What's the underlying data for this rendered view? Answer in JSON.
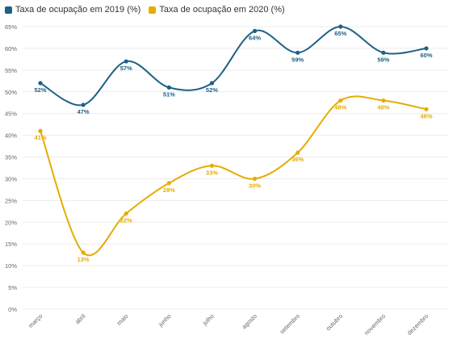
{
  "chart_data": {
    "type": "line",
    "categories": [
      "março",
      "abril",
      "maio",
      "junho",
      "julho",
      "agosto",
      "setembro",
      "outubro",
      "novembro",
      "dezembro"
    ],
    "series": [
      {
        "name": "Taxa de ocupação em 2019 (%)",
        "color": "#1d6185",
        "values": [
          52,
          47,
          57,
          51,
          52,
          64,
          59,
          65,
          59,
          60
        ],
        "labels": [
          "52%",
          "47%",
          "57%",
          "51%",
          "52%",
          "64%",
          "59%",
          "65%",
          "59%",
          "60%"
        ]
      },
      {
        "name": "Taxa de ocupação em 2020 (%)",
        "color": "#e6ac00",
        "values": [
          41,
          13,
          22,
          29,
          33,
          30,
          36,
          48,
          48,
          46
        ],
        "labels": [
          "41%",
          "13%",
          "22%",
          "29%",
          "33%",
          "30%",
          "36%",
          "48%",
          "48%",
          "46%"
        ]
      }
    ],
    "ylim": [
      0,
      65
    ],
    "yticks": [
      "0%",
      "5%",
      "10%",
      "15%",
      "20%",
      "25%",
      "30%",
      "35%",
      "40%",
      "45%",
      "50%",
      "55%",
      "60%",
      "65%"
    ],
    "grid": true,
    "legend_position": "top-left"
  }
}
